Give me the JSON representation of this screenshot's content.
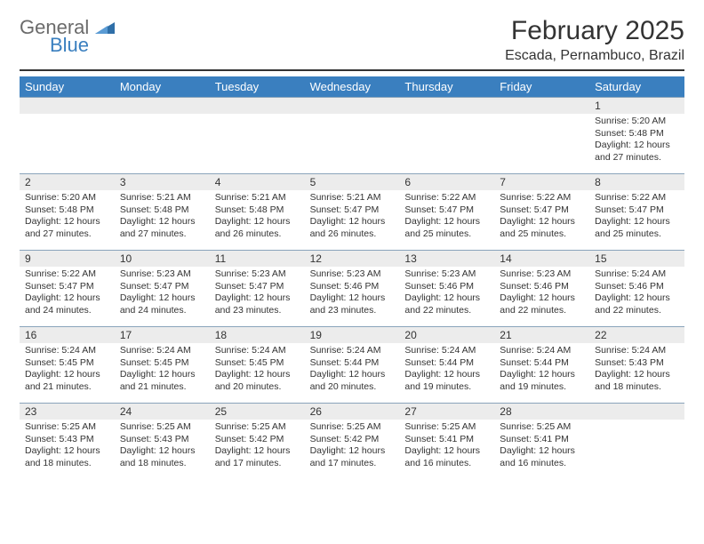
{
  "logo": {
    "text1": "General",
    "text2": "Blue"
  },
  "title": "February 2025",
  "location": "Escada, Pernambuco, Brazil",
  "colors": {
    "headerBar": "#3a7fbf",
    "dayNumBg": "#ececec",
    "divider": "#333333",
    "cellBorder": "#8aa4bb",
    "logoGray": "#6b6b6b",
    "logoBlue": "#3a7fbf"
  },
  "dayHeaders": [
    "Sunday",
    "Monday",
    "Tuesday",
    "Wednesday",
    "Thursday",
    "Friday",
    "Saturday"
  ],
  "weeks": [
    [
      {
        "n": "",
        "empty": true
      },
      {
        "n": "",
        "empty": true
      },
      {
        "n": "",
        "empty": true
      },
      {
        "n": "",
        "empty": true
      },
      {
        "n": "",
        "empty": true
      },
      {
        "n": "",
        "empty": true
      },
      {
        "n": "1",
        "sunrise": "Sunrise: 5:20 AM",
        "sunset": "Sunset: 5:48 PM",
        "daylight": "Daylight: 12 hours and 27 minutes."
      }
    ],
    [
      {
        "n": "2",
        "sunrise": "Sunrise: 5:20 AM",
        "sunset": "Sunset: 5:48 PM",
        "daylight": "Daylight: 12 hours and 27 minutes."
      },
      {
        "n": "3",
        "sunrise": "Sunrise: 5:21 AM",
        "sunset": "Sunset: 5:48 PM",
        "daylight": "Daylight: 12 hours and 27 minutes."
      },
      {
        "n": "4",
        "sunrise": "Sunrise: 5:21 AM",
        "sunset": "Sunset: 5:48 PM",
        "daylight": "Daylight: 12 hours and 26 minutes."
      },
      {
        "n": "5",
        "sunrise": "Sunrise: 5:21 AM",
        "sunset": "Sunset: 5:47 PM",
        "daylight": "Daylight: 12 hours and 26 minutes."
      },
      {
        "n": "6",
        "sunrise": "Sunrise: 5:22 AM",
        "sunset": "Sunset: 5:47 PM",
        "daylight": "Daylight: 12 hours and 25 minutes."
      },
      {
        "n": "7",
        "sunrise": "Sunrise: 5:22 AM",
        "sunset": "Sunset: 5:47 PM",
        "daylight": "Daylight: 12 hours and 25 minutes."
      },
      {
        "n": "8",
        "sunrise": "Sunrise: 5:22 AM",
        "sunset": "Sunset: 5:47 PM",
        "daylight": "Daylight: 12 hours and 25 minutes."
      }
    ],
    [
      {
        "n": "9",
        "sunrise": "Sunrise: 5:22 AM",
        "sunset": "Sunset: 5:47 PM",
        "daylight": "Daylight: 12 hours and 24 minutes."
      },
      {
        "n": "10",
        "sunrise": "Sunrise: 5:23 AM",
        "sunset": "Sunset: 5:47 PM",
        "daylight": "Daylight: 12 hours and 24 minutes."
      },
      {
        "n": "11",
        "sunrise": "Sunrise: 5:23 AM",
        "sunset": "Sunset: 5:47 PM",
        "daylight": "Daylight: 12 hours and 23 minutes."
      },
      {
        "n": "12",
        "sunrise": "Sunrise: 5:23 AM",
        "sunset": "Sunset: 5:46 PM",
        "daylight": "Daylight: 12 hours and 23 minutes."
      },
      {
        "n": "13",
        "sunrise": "Sunrise: 5:23 AM",
        "sunset": "Sunset: 5:46 PM",
        "daylight": "Daylight: 12 hours and 22 minutes."
      },
      {
        "n": "14",
        "sunrise": "Sunrise: 5:23 AM",
        "sunset": "Sunset: 5:46 PM",
        "daylight": "Daylight: 12 hours and 22 minutes."
      },
      {
        "n": "15",
        "sunrise": "Sunrise: 5:24 AM",
        "sunset": "Sunset: 5:46 PM",
        "daylight": "Daylight: 12 hours and 22 minutes."
      }
    ],
    [
      {
        "n": "16",
        "sunrise": "Sunrise: 5:24 AM",
        "sunset": "Sunset: 5:45 PM",
        "daylight": "Daylight: 12 hours and 21 minutes."
      },
      {
        "n": "17",
        "sunrise": "Sunrise: 5:24 AM",
        "sunset": "Sunset: 5:45 PM",
        "daylight": "Daylight: 12 hours and 21 minutes."
      },
      {
        "n": "18",
        "sunrise": "Sunrise: 5:24 AM",
        "sunset": "Sunset: 5:45 PM",
        "daylight": "Daylight: 12 hours and 20 minutes."
      },
      {
        "n": "19",
        "sunrise": "Sunrise: 5:24 AM",
        "sunset": "Sunset: 5:44 PM",
        "daylight": "Daylight: 12 hours and 20 minutes."
      },
      {
        "n": "20",
        "sunrise": "Sunrise: 5:24 AM",
        "sunset": "Sunset: 5:44 PM",
        "daylight": "Daylight: 12 hours and 19 minutes."
      },
      {
        "n": "21",
        "sunrise": "Sunrise: 5:24 AM",
        "sunset": "Sunset: 5:44 PM",
        "daylight": "Daylight: 12 hours and 19 minutes."
      },
      {
        "n": "22",
        "sunrise": "Sunrise: 5:24 AM",
        "sunset": "Sunset: 5:43 PM",
        "daylight": "Daylight: 12 hours and 18 minutes."
      }
    ],
    [
      {
        "n": "23",
        "sunrise": "Sunrise: 5:25 AM",
        "sunset": "Sunset: 5:43 PM",
        "daylight": "Daylight: 12 hours and 18 minutes."
      },
      {
        "n": "24",
        "sunrise": "Sunrise: 5:25 AM",
        "sunset": "Sunset: 5:43 PM",
        "daylight": "Daylight: 12 hours and 18 minutes."
      },
      {
        "n": "25",
        "sunrise": "Sunrise: 5:25 AM",
        "sunset": "Sunset: 5:42 PM",
        "daylight": "Daylight: 12 hours and 17 minutes."
      },
      {
        "n": "26",
        "sunrise": "Sunrise: 5:25 AM",
        "sunset": "Sunset: 5:42 PM",
        "daylight": "Daylight: 12 hours and 17 minutes."
      },
      {
        "n": "27",
        "sunrise": "Sunrise: 5:25 AM",
        "sunset": "Sunset: 5:41 PM",
        "daylight": "Daylight: 12 hours and 16 minutes."
      },
      {
        "n": "28",
        "sunrise": "Sunrise: 5:25 AM",
        "sunset": "Sunset: 5:41 PM",
        "daylight": "Daylight: 12 hours and 16 minutes."
      },
      {
        "n": "",
        "empty": true
      }
    ]
  ]
}
